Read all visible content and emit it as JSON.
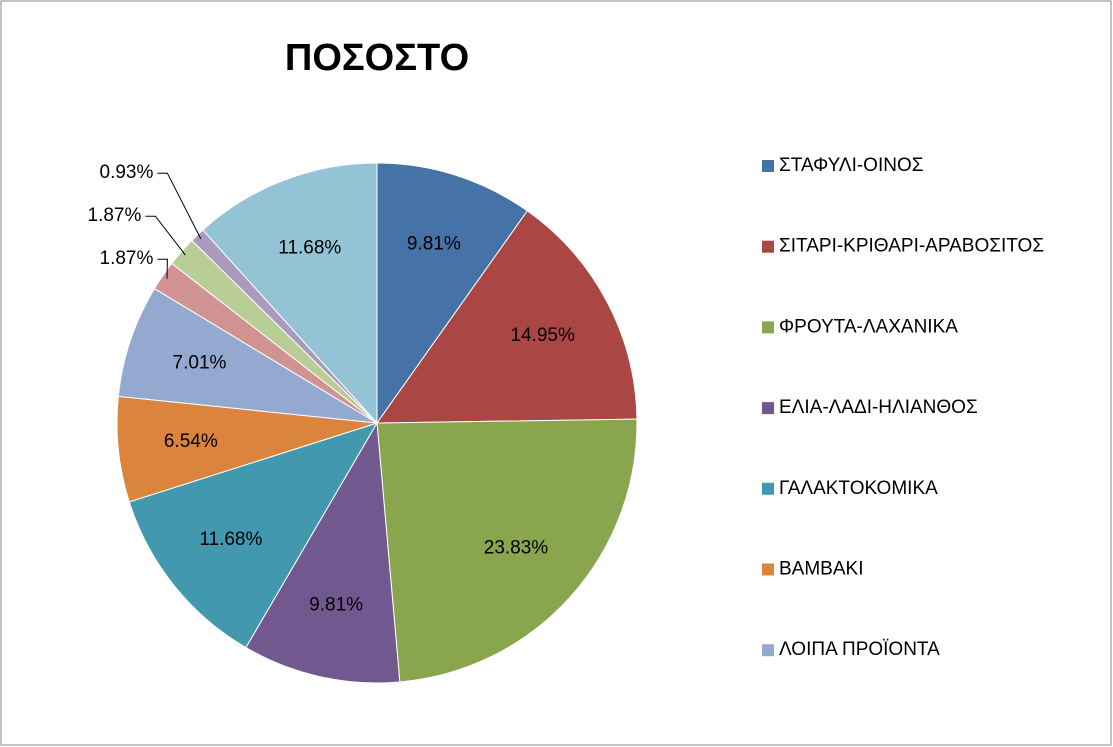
{
  "chart_data": {
    "type": "pie",
    "title": "ΠΟΣΟΣΤΟ",
    "categories": [
      "ΣΤΑΦΥΛΙ-ΟΙΝΟΣ",
      "ΣΙΤΑΡΙ-ΚΡΙΘΑΡΙ-ΑΡΑΒΟΣΙΤΟΣ",
      "ΦΡΟΥΤΑ-ΛΑΧΑΝΙΚΑ",
      "ΕΛΙΑ-ΛΑΔΙ-ΗΛΙΑΝΘΟΣ",
      "ΓΑΛΑΚΤΟΚΟΜΙΚΑ",
      "ΒΑΜΒΑΚΙ",
      "ΛΟΙΠΑ ΠΡΟΪΟΝΤΑ",
      null,
      null,
      null,
      null
    ],
    "values": [
      9.81,
      14.95,
      23.83,
      9.81,
      11.68,
      6.54,
      7.01,
      1.87,
      1.87,
      0.93,
      11.68
    ],
    "value_labels": [
      "9.81%",
      "14.95%",
      "23.83%",
      "9.81%",
      "11.68%",
      "6.54%",
      "7.01%",
      "1.87%",
      "1.87%",
      "0.93%",
      "11.68%"
    ],
    "colors": [
      "#4572a7",
      "#aa4643",
      "#89a54e",
      "#71588f",
      "#4198af",
      "#db843d",
      "#93a9cf",
      "#d19392",
      "#b9cd96",
      "#a99bbd",
      "#93c3d5"
    ],
    "legend": "right"
  }
}
